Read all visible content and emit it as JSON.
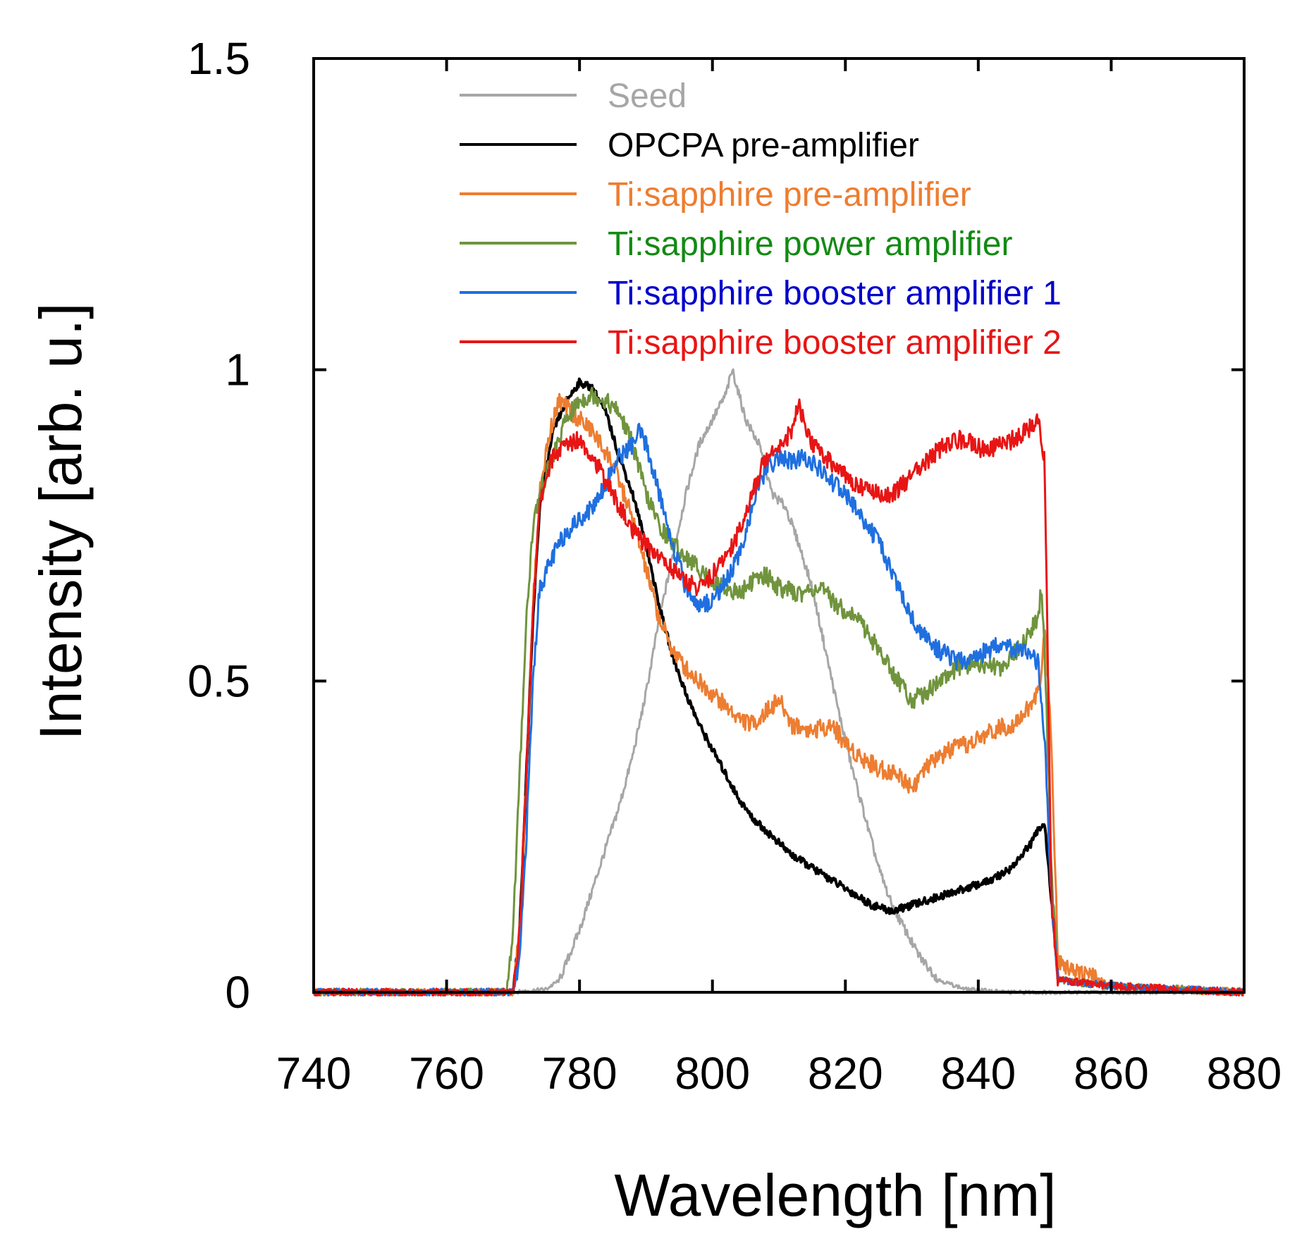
{
  "chart_data": {
    "type": "line",
    "title": "",
    "xlabel": "Wavelength [nm]",
    "ylabel": "Intensity [arb. u.]",
    "xlim": [
      740,
      880
    ],
    "ylim": [
      0,
      1.5
    ],
    "xticks": [
      740,
      760,
      780,
      800,
      820,
      840,
      860,
      880
    ],
    "xtick_labels": [
      "740",
      "760",
      "780",
      "800",
      "820",
      "840",
      "860",
      "880"
    ],
    "yticks": [
      0,
      0.5,
      1,
      1.5
    ],
    "ytick_labels": [
      "0",
      "0.5",
      "1",
      "1.5"
    ],
    "grid": false,
    "legend_position": "top",
    "series": [
      {
        "name": "Seed",
        "color": "#a6a6a6",
        "text_color": "#a6a6a6",
        "x": [
          740,
          760,
          770,
          775,
          777,
          780,
          783,
          786,
          788,
          790,
          792,
          794,
          796,
          798,
          800,
          802,
          803,
          805,
          807,
          809,
          811,
          813,
          815,
          817,
          819,
          821,
          823,
          825,
          827,
          829,
          831,
          834,
          838,
          845,
          852,
          860,
          880
        ],
        "y": [
          0,
          0,
          0,
          0.005,
          0.02,
          0.1,
          0.2,
          0.3,
          0.38,
          0.48,
          0.6,
          0.7,
          0.8,
          0.88,
          0.92,
          0.96,
          1.0,
          0.92,
          0.88,
          0.8,
          0.78,
          0.72,
          0.65,
          0.55,
          0.45,
          0.36,
          0.28,
          0.2,
          0.14,
          0.1,
          0.06,
          0.02,
          0.005,
          0,
          0,
          0,
          0
        ]
      },
      {
        "name": "OPCPA pre-amplifier",
        "color": "#000000",
        "text_color": "#000000",
        "x": [
          740,
          770,
          771,
          772,
          773,
          774,
          776,
          778,
          780,
          782,
          784,
          786,
          788,
          790,
          792,
          794,
          796,
          798,
          800,
          802,
          804,
          806,
          808,
          810,
          812,
          815,
          818,
          821,
          824,
          827,
          830,
          833,
          836,
          839,
          842,
          845,
          848,
          849.5,
          850,
          851,
          852,
          860,
          880
        ],
        "y": [
          0,
          0,
          0.1,
          0.35,
          0.6,
          0.78,
          0.9,
          0.95,
          0.98,
          0.97,
          0.93,
          0.86,
          0.8,
          0.72,
          0.62,
          0.54,
          0.48,
          0.43,
          0.39,
          0.35,
          0.31,
          0.28,
          0.26,
          0.24,
          0.22,
          0.2,
          0.18,
          0.16,
          0.14,
          0.13,
          0.14,
          0.15,
          0.16,
          0.17,
          0.18,
          0.2,
          0.24,
          0.27,
          0.27,
          0.15,
          0.02,
          0.01,
          0
        ]
      },
      {
        "name": "Ti:sapphire pre-amplifier",
        "color": "#ed7d31",
        "text_color": "#ed7d31",
        "x": [
          740,
          770,
          771,
          772,
          773,
          774,
          775,
          776,
          777,
          779,
          782,
          785,
          788,
          790,
          792,
          794,
          796,
          798,
          800,
          802,
          804,
          806,
          808,
          810,
          812,
          815,
          818,
          820,
          822,
          825,
          828,
          830,
          833,
          836,
          839,
          842,
          845,
          848,
          849.5,
          850,
          851,
          852,
          860,
          880
        ],
        "y": [
          0,
          0,
          0.1,
          0.35,
          0.62,
          0.8,
          0.87,
          0.92,
          0.95,
          0.93,
          0.9,
          0.85,
          0.76,
          0.68,
          0.6,
          0.55,
          0.52,
          0.5,
          0.48,
          0.46,
          0.44,
          0.43,
          0.45,
          0.47,
          0.43,
          0.42,
          0.43,
          0.4,
          0.38,
          0.36,
          0.35,
          0.33,
          0.37,
          0.39,
          0.4,
          0.42,
          0.43,
          0.46,
          0.5,
          0.6,
          0.4,
          0.05,
          0.01,
          0
        ]
      },
      {
        "name": "Ti:sapphire power amplifier",
        "color": "#70943d",
        "text_color": "#138a13",
        "x": [
          740,
          769,
          770,
          771,
          772,
          773,
          774,
          776,
          778,
          780,
          782,
          784,
          786,
          788,
          790,
          792,
          794,
          796,
          798,
          800,
          802,
          804,
          806,
          808,
          810,
          813,
          816,
          819,
          822,
          825,
          828,
          830,
          832,
          834,
          837,
          840,
          843,
          846,
          849,
          849.5,
          850,
          851,
          852,
          860,
          880
        ],
        "y": [
          0,
          0,
          0.1,
          0.35,
          0.6,
          0.75,
          0.8,
          0.86,
          0.92,
          0.95,
          0.96,
          0.95,
          0.93,
          0.88,
          0.8,
          0.75,
          0.72,
          0.7,
          0.68,
          0.66,
          0.65,
          0.64,
          0.66,
          0.67,
          0.65,
          0.64,
          0.65,
          0.62,
          0.6,
          0.55,
          0.5,
          0.47,
          0.48,
          0.5,
          0.52,
          0.53,
          0.52,
          0.55,
          0.6,
          0.65,
          0.55,
          0.2,
          0.02,
          0.01,
          0
        ]
      },
      {
        "name": "Ti:sapphire booster amplifier 1",
        "color": "#1f6fe0",
        "text_color": "#0000cc",
        "x": [
          740,
          770,
          771,
          772,
          773,
          774,
          776,
          778,
          780,
          782,
          784,
          786,
          788,
          789,
          790,
          792,
          794,
          796,
          798,
          800,
          802,
          804,
          806,
          808,
          810,
          812,
          814,
          816,
          818,
          820,
          822,
          824,
          826,
          828,
          830,
          832,
          834,
          837,
          840,
          843,
          846,
          849,
          850,
          851,
          852,
          860,
          880
        ],
        "y": [
          0,
          0,
          0.05,
          0.25,
          0.5,
          0.65,
          0.7,
          0.74,
          0.76,
          0.78,
          0.82,
          0.86,
          0.88,
          0.9,
          0.88,
          0.8,
          0.72,
          0.65,
          0.62,
          0.63,
          0.66,
          0.7,
          0.78,
          0.84,
          0.86,
          0.85,
          0.86,
          0.84,
          0.82,
          0.8,
          0.77,
          0.74,
          0.7,
          0.65,
          0.6,
          0.57,
          0.55,
          0.53,
          0.54,
          0.56,
          0.55,
          0.53,
          0.4,
          0.15,
          0.02,
          0.01,
          0
        ]
      },
      {
        "name": "Ti:sapphire booster amplifier 2",
        "color": "#e81515",
        "text_color": "#e81515",
        "x": [
          740,
          770,
          771,
          772,
          773,
          774,
          775,
          776,
          778,
          780,
          782,
          784,
          786,
          788,
          790,
          792,
          794,
          796,
          798,
          800,
          802,
          804,
          806,
          808,
          810,
          812,
          813,
          814,
          815,
          817,
          819,
          821,
          823,
          825,
          827,
          829,
          831,
          833,
          835,
          838,
          841,
          844,
          847,
          849,
          850,
          850.5,
          851,
          852,
          860,
          880
        ],
        "y": [
          0,
          0,
          0.1,
          0.35,
          0.62,
          0.78,
          0.83,
          0.86,
          0.88,
          0.89,
          0.86,
          0.82,
          0.78,
          0.74,
          0.72,
          0.7,
          0.68,
          0.66,
          0.65,
          0.67,
          0.7,
          0.74,
          0.8,
          0.86,
          0.88,
          0.9,
          0.95,
          0.9,
          0.88,
          0.86,
          0.84,
          0.82,
          0.81,
          0.8,
          0.8,
          0.82,
          0.84,
          0.86,
          0.88,
          0.89,
          0.87,
          0.88,
          0.9,
          0.92,
          0.85,
          0.5,
          0.15,
          0.02,
          0.01,
          0
        ]
      }
    ]
  }
}
